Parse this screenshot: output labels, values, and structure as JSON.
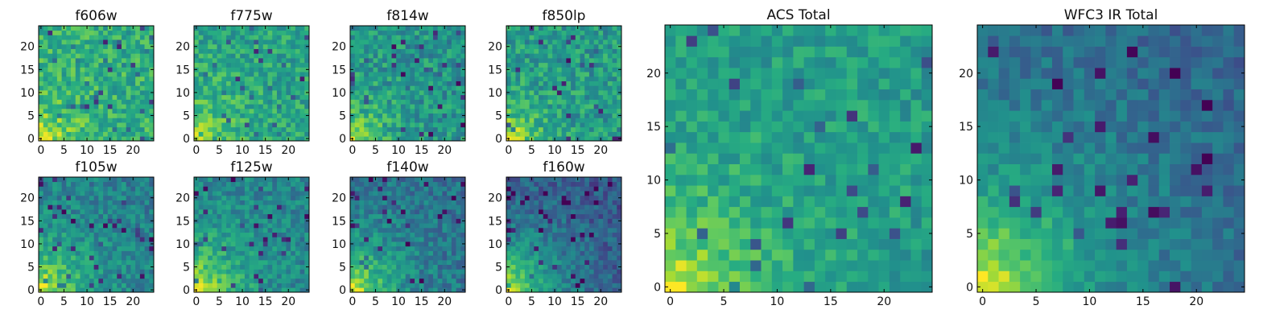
{
  "figure": {
    "colormap": "viridis",
    "colors": {
      "cmap_low": "#440154",
      "cmap_mid": "#21918c",
      "cmap_high": "#fde725",
      "frame": "#000000"
    }
  },
  "chart_data": [
    {
      "type": "heatmap",
      "id": "f606w",
      "title": "f606w",
      "grid_size": 25,
      "x_ticks": [
        "0",
        "5",
        "10",
        "15",
        "20"
      ],
      "y_ticks": [
        "0",
        "5",
        "10",
        "15",
        "20"
      ],
      "xlim": [
        -0.5,
        24.5
      ],
      "ylim": [
        -0.5,
        24.5
      ],
      "origin": "lower",
      "bright_corner": "bottom-left",
      "value_range": [
        0,
        1
      ],
      "peak": 0.98,
      "base": 0.62,
      "noise": 0.16,
      "falloff": 6,
      "seed": 11
    },
    {
      "type": "heatmap",
      "id": "f775w",
      "title": "f775w",
      "grid_size": 25,
      "x_ticks": [
        "0",
        "5",
        "10",
        "15",
        "20"
      ],
      "y_ticks": [
        "0",
        "5",
        "10",
        "15",
        "20"
      ],
      "xlim": [
        -0.5,
        24.5
      ],
      "ylim": [
        -0.5,
        24.5
      ],
      "origin": "lower",
      "bright_corner": "bottom-left",
      "value_range": [
        0,
        1
      ],
      "peak": 0.98,
      "base": 0.58,
      "noise": 0.15,
      "falloff": 6,
      "seed": 23
    },
    {
      "type": "heatmap",
      "id": "f814w",
      "title": "f814w",
      "grid_size": 25,
      "x_ticks": [
        "0",
        "5",
        "10",
        "15",
        "20"
      ],
      "y_ticks": [
        "0",
        "5",
        "10",
        "15",
        "20"
      ],
      "xlim": [
        -0.5,
        24.5
      ],
      "ylim": [
        -0.5,
        24.5
      ],
      "origin": "lower",
      "bright_corner": "bottom-left",
      "value_range": [
        0,
        1
      ],
      "peak": 1.0,
      "base": 0.52,
      "noise": 0.16,
      "falloff": 5,
      "seed": 37
    },
    {
      "type": "heatmap",
      "id": "f850lp",
      "title": "f850lp",
      "grid_size": 25,
      "x_ticks": [
        "0",
        "5",
        "10",
        "15",
        "20"
      ],
      "y_ticks": [
        "0",
        "5",
        "10",
        "15",
        "20"
      ],
      "xlim": [
        -0.5,
        24.5
      ],
      "ylim": [
        -0.5,
        24.5
      ],
      "origin": "lower",
      "bright_corner": "bottom-left",
      "value_range": [
        0,
        1
      ],
      "peak": 1.0,
      "base": 0.54,
      "noise": 0.16,
      "falloff": 5,
      "seed": 41
    },
    {
      "type": "heatmap",
      "id": "f105w",
      "title": "f105w",
      "grid_size": 25,
      "x_ticks": [
        "0",
        "5",
        "10",
        "15",
        "20"
      ],
      "y_ticks": [
        "0",
        "5",
        "10",
        "15",
        "20"
      ],
      "xlim": [
        -0.5,
        24.5
      ],
      "ylim": [
        -0.5,
        24.5
      ],
      "origin": "lower",
      "bright_corner": "bottom-left",
      "value_range": [
        0,
        1
      ],
      "peak": 1.0,
      "base": 0.42,
      "noise": 0.13,
      "falloff": 8,
      "seed": 53
    },
    {
      "type": "heatmap",
      "id": "f125w",
      "title": "f125w",
      "grid_size": 25,
      "x_ticks": [
        "0",
        "5",
        "10",
        "15",
        "20"
      ],
      "y_ticks": [
        "0",
        "5",
        "10",
        "15",
        "20"
      ],
      "xlim": [
        -0.5,
        24.5
      ],
      "ylim": [
        -0.5,
        24.5
      ],
      "origin": "lower",
      "bright_corner": "bottom-left",
      "value_range": [
        0,
        1
      ],
      "peak": 1.0,
      "base": 0.44,
      "noise": 0.13,
      "falloff": 8,
      "seed": 67
    },
    {
      "type": "heatmap",
      "id": "f140w",
      "title": "f140w",
      "grid_size": 25,
      "x_ticks": [
        "0",
        "5",
        "10",
        "15",
        "20"
      ],
      "y_ticks": [
        "0",
        "5",
        "10",
        "15",
        "20"
      ],
      "xlim": [
        -0.5,
        24.5
      ],
      "ylim": [
        -0.5,
        24.5
      ],
      "origin": "lower",
      "bright_corner": "bottom-left",
      "value_range": [
        0,
        1
      ],
      "peak": 1.0,
      "base": 0.36,
      "noise": 0.13,
      "falloff": 8,
      "seed": 79
    },
    {
      "type": "heatmap",
      "id": "f160w",
      "title": "f160w",
      "grid_size": 25,
      "x_ticks": [
        "0",
        "5",
        "10",
        "15",
        "20"
      ],
      "y_ticks": [
        "0",
        "5",
        "10",
        "15",
        "20"
      ],
      "xlim": [
        -0.5,
        24.5
      ],
      "ylim": [
        -0.5,
        24.5
      ],
      "origin": "lower",
      "bright_corner": "bottom-left",
      "value_range": [
        0,
        1
      ],
      "peak": 1.0,
      "base": 0.26,
      "noise": 0.12,
      "falloff": 9,
      "seed": 83
    },
    {
      "type": "heatmap",
      "id": "acs-total",
      "title": "ACS Total",
      "grid_size": 25,
      "x_ticks": [
        "0",
        "5",
        "10",
        "15",
        "20"
      ],
      "y_ticks": [
        "0",
        "5",
        "10",
        "15",
        "20"
      ],
      "xlim": [
        -0.5,
        24.5
      ],
      "ylim": [
        -0.5,
        24.5
      ],
      "origin": "lower",
      "bright_corner": "bottom-left",
      "value_range": [
        0,
        1
      ],
      "peak": 1.0,
      "base": 0.55,
      "noise": 0.12,
      "falloff": 6,
      "seed": 97
    },
    {
      "type": "heatmap",
      "id": "wfc3-ir-total",
      "title": "WFC3 IR Total",
      "grid_size": 25,
      "x_ticks": [
        "0",
        "5",
        "10",
        "15",
        "20"
      ],
      "y_ticks": [
        "0",
        "5",
        "10",
        "15",
        "20"
      ],
      "xlim": [
        -0.5,
        24.5
      ],
      "ylim": [
        -0.5,
        24.5
      ],
      "origin": "lower",
      "bright_corner": "bottom-left",
      "value_range": [
        0,
        1
      ],
      "peak": 1.0,
      "base": 0.3,
      "noise": 0.1,
      "falloff": 10,
      "seed": 101
    }
  ]
}
